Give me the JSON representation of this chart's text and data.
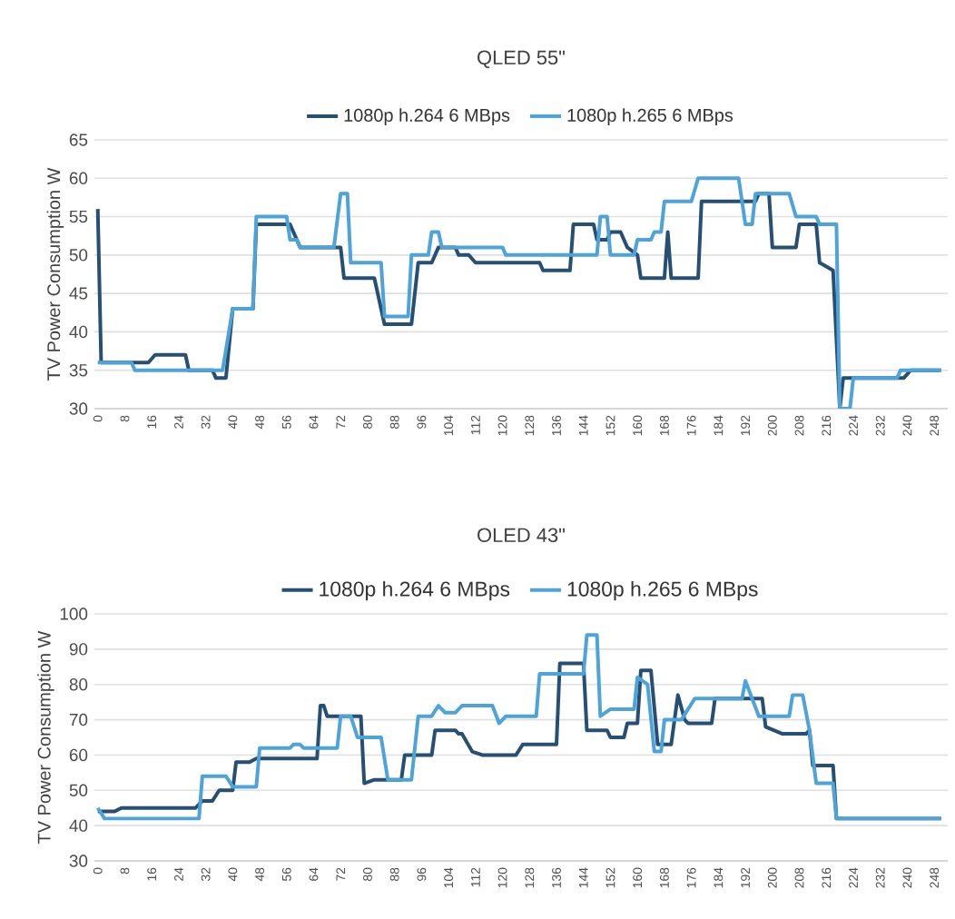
{
  "chart_data": [
    {
      "type": "line",
      "title": "QLED 55\"",
      "ylabel": "TV Power Consumption W",
      "legend": "top",
      "grid": "y",
      "marker": "none",
      "line_style": "solid",
      "xlim": [
        -1,
        252
      ],
      "xticks": [
        0,
        8,
        16,
        24,
        32,
        40,
        48,
        56,
        64,
        72,
        80,
        88,
        96,
        104,
        112,
        120,
        128,
        136,
        144,
        152,
        160,
        168,
        176,
        184,
        192,
        200,
        208,
        216,
        224,
        232,
        240,
        248
      ],
      "ylim": [
        30,
        65
      ],
      "yticks": [
        30,
        35,
        40,
        45,
        50,
        55,
        60,
        65
      ],
      "series": [
        {
          "name": "1080p h.264 6 MBps",
          "color": "#264f73",
          "x": [
            0,
            1,
            15,
            17,
            26,
            27,
            34,
            35,
            38,
            40,
            46,
            47,
            57,
            60,
            72,
            73,
            82,
            85,
            93,
            95,
            99,
            101,
            106,
            107,
            110,
            112,
            131,
            132,
            140,
            141,
            147,
            148,
            151,
            152,
            155,
            157,
            160,
            161,
            168,
            169,
            170,
            178,
            179,
            195,
            196,
            199,
            200,
            207,
            208,
            213,
            214,
            218,
            220,
            221,
            239,
            241,
            250
          ],
          "values": [
            56,
            36,
            36,
            37,
            37,
            35,
            35,
            34,
            34,
            43,
            43,
            54,
            54,
            51,
            51,
            47,
            47,
            41,
            41,
            49,
            49,
            51,
            51,
            50,
            50,
            49,
            49,
            48,
            48,
            54,
            54,
            52,
            52,
            53,
            53,
            51,
            50,
            47,
            47,
            53,
            47,
            47,
            57,
            57,
            58,
            58,
            51,
            51,
            54,
            54,
            49,
            48,
            30,
            34,
            34,
            35,
            35
          ]
        },
        {
          "name": "1080p h.265 6 MBps",
          "color": "#4ea3d8",
          "x": [
            0,
            10,
            11,
            37,
            40,
            46,
            47,
            56,
            57,
            59,
            60,
            70,
            72,
            74,
            75,
            84,
            85,
            92,
            93,
            98,
            99,
            101,
            102,
            120,
            121,
            148,
            149,
            151,
            152,
            159,
            160,
            164,
            165,
            167,
            168,
            176,
            178,
            190,
            192,
            194,
            195,
            205,
            207,
            213,
            214,
            219,
            220,
            223,
            224,
            237,
            238,
            250
          ],
          "values": [
            36,
            36,
            35,
            35,
            43,
            43,
            55,
            55,
            52,
            52,
            51,
            51,
            58,
            58,
            49,
            49,
            42,
            42,
            50,
            50,
            53,
            53,
            51,
            51,
            50,
            50,
            55,
            55,
            50,
            50,
            52,
            52,
            53,
            53,
            57,
            57,
            60,
            60,
            54,
            54,
            58,
            58,
            55,
            55,
            54,
            54,
            30,
            30,
            34,
            34,
            35,
            35
          ]
        }
      ]
    },
    {
      "type": "line",
      "title": "OLED 43\"",
      "ylabel": "TV Power Consumption W",
      "legend": "top",
      "grid": "y",
      "marker": "none",
      "line_style": "solid",
      "xlim": [
        -1,
        252
      ],
      "xticks": [
        0,
        8,
        16,
        24,
        32,
        40,
        48,
        56,
        64,
        72,
        80,
        88,
        96,
        104,
        112,
        120,
        128,
        136,
        144,
        152,
        160,
        168,
        176,
        184,
        192,
        200,
        208,
        216,
        224,
        232,
        240,
        248
      ],
      "ylim": [
        30,
        100
      ],
      "yticks": [
        30,
        40,
        50,
        60,
        70,
        80,
        90,
        100
      ],
      "series": [
        {
          "name": "1080p h.264 6 MBps",
          "color": "#264f73",
          "x": [
            0,
            5,
            7,
            29,
            31,
            34,
            36,
            40,
            41,
            45,
            47,
            65,
            66,
            67,
            68,
            78,
            79,
            82,
            90,
            91,
            99,
            100,
            106,
            107,
            108,
            111,
            114,
            124,
            126,
            136,
            137,
            144,
            145,
            151,
            152,
            156,
            157,
            160,
            161,
            164,
            166,
            170,
            172,
            174,
            175,
            182,
            183,
            197,
            198,
            203,
            210,
            211,
            212,
            218,
            219,
            250
          ],
          "values": [
            44,
            44,
            45,
            45,
            47,
            47,
            50,
            50,
            58,
            58,
            59,
            59,
            74,
            74,
            71,
            71,
            52,
            53,
            53,
            60,
            60,
            67,
            67,
            66,
            66,
            61,
            60,
            60,
            63,
            63,
            86,
            86,
            67,
            67,
            65,
            65,
            69,
            69,
            84,
            84,
            63,
            63,
            77,
            70,
            69,
            69,
            76,
            76,
            68,
            66,
            66,
            67,
            57,
            57,
            42,
            42
          ]
        },
        {
          "name": "1080p h.265 6 MBps",
          "color": "#4ea3d8",
          "x": [
            0,
            2,
            30,
            31,
            38,
            40,
            47,
            48,
            57,
            58,
            60,
            61,
            71,
            72,
            75,
            77,
            84,
            86,
            93,
            95,
            99,
            101,
            103,
            106,
            108,
            117,
            119,
            121,
            130,
            131,
            144,
            145,
            148,
            149,
            152,
            159,
            160,
            163,
            165,
            167,
            168,
            173,
            177,
            191,
            192,
            194,
            196,
            205,
            206,
            209,
            211,
            213,
            218,
            219,
            250
          ],
          "values": [
            45,
            42,
            42,
            54,
            54,
            51,
            51,
            62,
            62,
            63,
            63,
            62,
            62,
            71,
            71,
            65,
            65,
            53,
            53,
            71,
            71,
            74,
            72,
            72,
            74,
            74,
            69,
            71,
            71,
            83,
            83,
            94,
            94,
            71,
            73,
            73,
            82,
            80,
            61,
            61,
            70,
            70,
            76,
            76,
            81,
            76,
            71,
            71,
            77,
            77,
            67,
            52,
            52,
            42,
            42
          ]
        }
      ]
    }
  ]
}
